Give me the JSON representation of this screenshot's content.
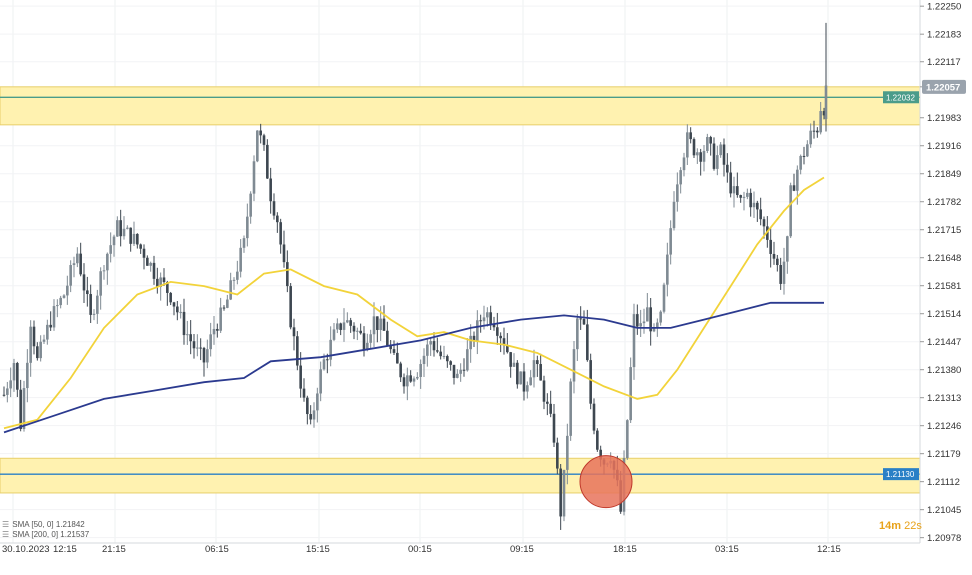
{
  "chart_data": {
    "type": "candlestick",
    "instrument_timeframe": "15m",
    "x_labels": [
      "30.10.2023",
      "12:15",
      "21:15",
      "06:15",
      "15:15",
      "00:15",
      "09:15",
      "18:15",
      "03:15",
      "12:15"
    ],
    "y_ticks": [
      "1.22250",
      "1.22183",
      "1.22117",
      "1.22057",
      "1.21983",
      "1.21916",
      "1.21849",
      "1.21782",
      "1.21715",
      "1.21648",
      "1.21581",
      "1.21514",
      "1.21447",
      "1.21380",
      "1.21313",
      "1.21246",
      "1.21179",
      "1.21112",
      "1.21045",
      "1.20978"
    ],
    "ylim": [
      1.2097,
      1.2226
    ],
    "current_price": "1.22057",
    "horizontal_lines": [
      {
        "label": "1.22032",
        "value": 1.22032,
        "color": "#4b9c8a"
      },
      {
        "label": "1.21130",
        "value": 1.2113,
        "color": "#2a80c6"
      }
    ],
    "zones": [
      {
        "from": 1.21966,
        "to": 1.22057,
        "color": "#fff2b0"
      },
      {
        "from": 1.21085,
        "to": 1.21168,
        "color": "#fff2b0"
      }
    ],
    "marker": {
      "price": 1.21112,
      "color": "#e8735c"
    },
    "sma_legend": [
      {
        "label": "SMA [50, 0]",
        "value": "1.21842",
        "color": "#f2d33a"
      },
      {
        "label": "SMA [200, 0]",
        "value": "1.21537",
        "color": "#2b3a8f"
      }
    ],
    "timer": {
      "minutes": "14m",
      "seconds": "22s"
    },
    "close_path": [
      [
        0,
        1.2132
      ],
      [
        3,
        1.214
      ],
      [
        5,
        1.2125
      ],
      [
        8,
        1.215
      ],
      [
        10,
        1.214
      ],
      [
        14,
        1.215
      ],
      [
        18,
        1.2156
      ],
      [
        22,
        1.2166
      ],
      [
        26,
        1.215
      ],
      [
        30,
        1.2164
      ],
      [
        34,
        1.2172
      ],
      [
        38,
        1.217
      ],
      [
        42,
        1.2166
      ],
      [
        46,
        1.216
      ],
      [
        50,
        1.2156
      ],
      [
        54,
        1.2148
      ],
      [
        58,
        1.2142
      ],
      [
        60,
        1.214
      ],
      [
        63,
        1.2148
      ],
      [
        66,
        1.2152
      ],
      [
        69,
        1.216
      ],
      [
        72,
        1.2168
      ],
      [
        74,
        1.2182
      ],
      [
        76,
        1.2196
      ],
      [
        78,
        1.219
      ],
      [
        80,
        1.218
      ],
      [
        82,
        1.2174
      ],
      [
        84,
        1.2162
      ],
      [
        86,
        1.215
      ],
      [
        88,
        1.214
      ],
      [
        90,
        1.213
      ],
      [
        92,
        1.2124
      ],
      [
        94,
        1.2134
      ],
      [
        96,
        1.214
      ],
      [
        99,
        1.2146
      ],
      [
        102,
        1.215
      ],
      [
        105,
        1.2148
      ],
      [
        108,
        1.2145
      ],
      [
        111,
        1.215
      ],
      [
        114,
        1.2147
      ],
      [
        117,
        1.214
      ],
      [
        120,
        1.2136
      ],
      [
        124,
        1.2138
      ],
      [
        128,
        1.2145
      ],
      [
        132,
        1.214
      ],
      [
        136,
        1.2136
      ],
      [
        140,
        1.2144
      ],
      [
        144,
        1.2152
      ],
      [
        147,
        1.215
      ],
      [
        150,
        1.2145
      ],
      [
        153,
        1.2138
      ],
      [
        156,
        1.2134
      ],
      [
        159,
        1.214
      ],
      [
        162,
        1.2132
      ],
      [
        165,
        1.2122
      ],
      [
        167,
        1.2104
      ],
      [
        168,
        1.2112
      ],
      [
        170,
        1.2134
      ],
      [
        172,
        1.215
      ],
      [
        174,
        1.2148
      ],
      [
        176,
        1.213
      ],
      [
        178,
        1.212
      ],
      [
        180,
        1.2116
      ],
      [
        182,
        1.2118
      ],
      [
        184,
        1.211
      ],
      [
        185,
        1.2104
      ],
      [
        187,
        1.2126
      ],
      [
        189,
        1.215
      ],
      [
        191,
        1.2148
      ],
      [
        193,
        1.2152
      ],
      [
        195,
        1.2146
      ],
      [
        197,
        1.215
      ],
      [
        199,
        1.2164
      ],
      [
        201,
        1.218
      ],
      [
        203,
        1.2188
      ],
      [
        205,
        1.2193
      ],
      [
        207,
        1.2191
      ],
      [
        209,
        1.219
      ],
      [
        211,
        1.2192
      ],
      [
        213,
        1.2188
      ],
      [
        215,
        1.219
      ],
      [
        217,
        1.2184
      ],
      [
        219,
        1.218
      ],
      [
        221,
        1.2178
      ],
      [
        223,
        1.218
      ],
      [
        225,
        1.2177
      ],
      [
        227,
        1.2174
      ],
      [
        229,
        1.217
      ],
      [
        231,
        1.2165
      ],
      [
        233,
        1.216
      ],
      [
        235,
        1.2168
      ],
      [
        236,
        1.218
      ],
      [
        238,
        1.2186
      ],
      [
        240,
        1.219
      ],
      [
        242,
        1.2194
      ],
      [
        244,
        1.2196
      ],
      [
        245,
        1.2201
      ]
    ],
    "sma50_path": [
      [
        0,
        1.2124
      ],
      [
        10,
        1.2126
      ],
      [
        20,
        1.2136
      ],
      [
        30,
        1.2148
      ],
      [
        40,
        1.2156
      ],
      [
        50,
        1.2159
      ],
      [
        60,
        1.2158
      ],
      [
        70,
        1.2156
      ],
      [
        78,
        1.2161
      ],
      [
        86,
        1.2162
      ],
      [
        96,
        1.2158
      ],
      [
        106,
        1.2156
      ],
      [
        116,
        1.215
      ],
      [
        124,
        1.2146
      ],
      [
        132,
        1.2147
      ],
      [
        140,
        1.2145
      ],
      [
        150,
        1.2144
      ],
      [
        160,
        1.2142
      ],
      [
        170,
        1.2138
      ],
      [
        180,
        1.2134
      ],
      [
        190,
        1.2131
      ],
      [
        196,
        1.2132
      ],
      [
        202,
        1.2138
      ],
      [
        210,
        1.2148
      ],
      [
        218,
        1.2158
      ],
      [
        226,
        1.2168
      ],
      [
        234,
        1.2176
      ],
      [
        240,
        1.2181
      ],
      [
        246,
        1.2184
      ]
    ],
    "sma200_path": [
      [
        0,
        1.2123
      ],
      [
        15,
        1.2127
      ],
      [
        30,
        1.2131
      ],
      [
        45,
        1.2133
      ],
      [
        60,
        1.2135
      ],
      [
        72,
        1.2136
      ],
      [
        80,
        1.214
      ],
      [
        95,
        1.2141
      ],
      [
        110,
        1.2143
      ],
      [
        125,
        1.2145
      ],
      [
        140,
        1.2148
      ],
      [
        155,
        1.215
      ],
      [
        168,
        1.2151
      ],
      [
        180,
        1.215
      ],
      [
        190,
        1.2148
      ],
      [
        200,
        1.2148
      ],
      [
        210,
        1.215
      ],
      [
        220,
        1.2152
      ],
      [
        230,
        1.2154
      ],
      [
        246,
        1.2154
      ]
    ]
  }
}
